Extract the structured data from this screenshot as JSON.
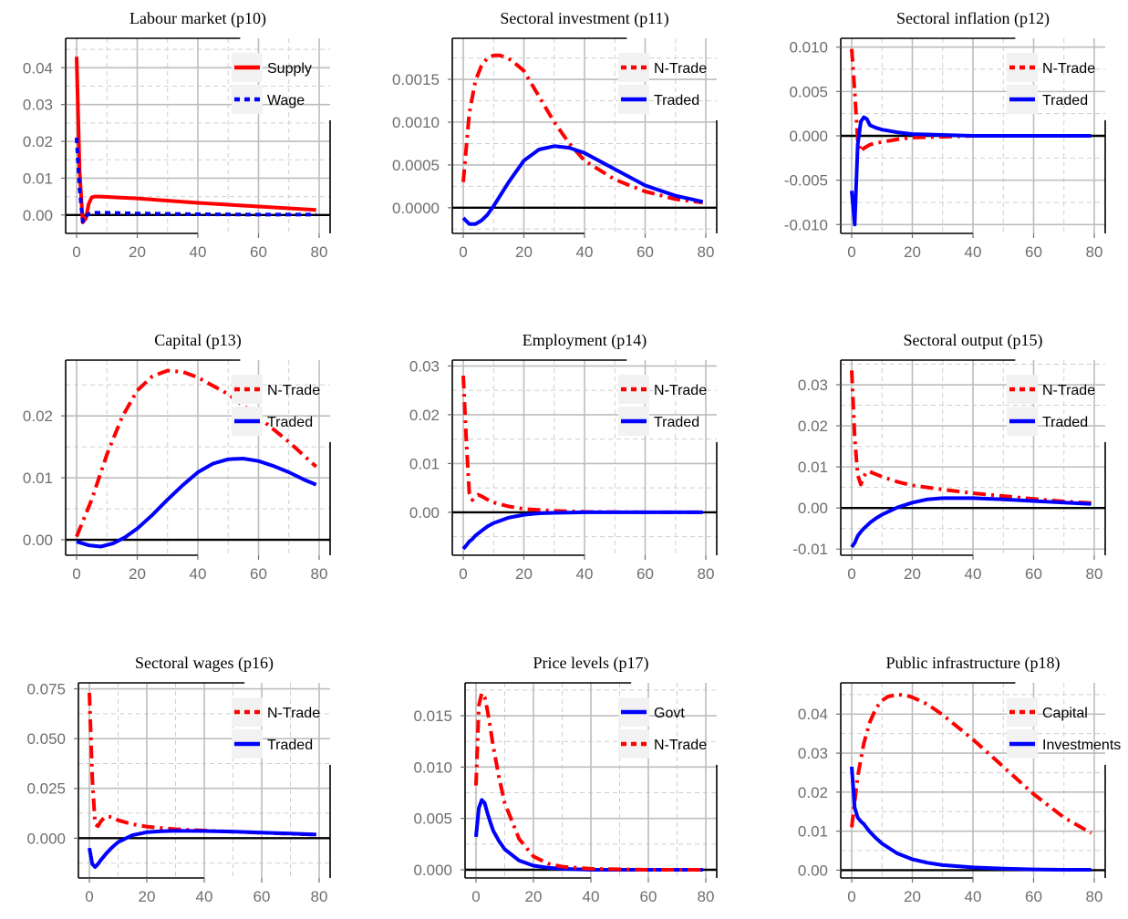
{
  "chart_data": [
    {
      "type": "line",
      "title": "Labour market (p10)",
      "xlim": [
        0,
        80
      ],
      "ylim": [
        -0.005,
        0.048
      ],
      "xticks": [
        0,
        20,
        40,
        60,
        80
      ],
      "xtick_labels": [
        "0",
        "20",
        "40",
        "60",
        "80"
      ],
      "yticks": [
        0,
        0.01,
        0.02,
        0.03,
        0.04
      ],
      "ytick_labels": [
        "0.00",
        "0.01",
        "0.02",
        "0.03",
        "0.04"
      ],
      "grid": true,
      "legend": "top-right",
      "series": [
        {
          "name": "Supply",
          "color": "#ff0000",
          "style": "solid",
          "x": [
            0,
            1,
            2,
            3,
            4,
            5,
            6,
            8,
            10,
            20,
            30,
            40,
            50,
            60,
            70,
            79
          ],
          "y": [
            0.043,
            0.012,
            -0.002,
            -0.001,
            0.003,
            0.0048,
            0.005,
            0.005,
            0.0049,
            0.0045,
            0.0039,
            0.0033,
            0.0028,
            0.0023,
            0.0018,
            0.0014
          ]
        },
        {
          "name": "Wage",
          "color": "#0000ff",
          "style": "dashed",
          "x": [
            0,
            1,
            2,
            3,
            4,
            6,
            10,
            20,
            40,
            60,
            79
          ],
          "y": [
            0.021,
            0.007,
            -0.0018,
            -0.0005,
            0.0003,
            0.0006,
            0.0006,
            0.0004,
            0.0002,
            0.0001,
            0.0001
          ]
        }
      ]
    },
    {
      "type": "line",
      "title": "Sectoral investment (p11)",
      "xlim": [
        0,
        80
      ],
      "ylim": [
        -0.0003,
        0.00198
      ],
      "xticks": [
        0,
        20,
        40,
        60,
        80
      ],
      "xtick_labels": [
        "0",
        "20",
        "40",
        "60",
        "80"
      ],
      "yticks": [
        0,
        0.0005,
        0.001,
        0.0015
      ],
      "ytick_labels": [
        "0.0000",
        "0.0005",
        "0.0010",
        "0.0015"
      ],
      "grid": true,
      "legend": "top-right",
      "series": [
        {
          "name": "N-Trade",
          "color": "#ff0000",
          "style": "dashdot",
          "x": [
            0,
            2,
            4,
            6,
            8,
            10,
            12,
            14,
            16,
            20,
            25,
            30,
            35,
            40,
            50,
            60,
            70,
            79
          ],
          "y": [
            0.0003,
            0.0011,
            0.00148,
            0.00166,
            0.00175,
            0.00178,
            0.00178,
            0.00176,
            0.00172,
            0.0016,
            0.0013,
            0.001,
            0.00075,
            0.00055,
            0.00033,
            0.00019,
            0.0001,
            6e-05
          ]
        },
        {
          "name": "Traded",
          "color": "#0000ff",
          "style": "solid",
          "x": [
            0,
            2,
            4,
            6,
            8,
            10,
            15,
            20,
            25,
            30,
            35,
            40,
            50,
            60,
            70,
            79
          ],
          "y": [
            -0.00012,
            -0.00019,
            -0.00019,
            -0.00015,
            -8e-05,
            2e-05,
            0.0003,
            0.00055,
            0.00068,
            0.00072,
            0.0007,
            0.00064,
            0.00045,
            0.00026,
            0.00014,
            7e-05
          ]
        }
      ]
    },
    {
      "type": "line",
      "title": "Sectoral inflation (p12)",
      "xlim": [
        0,
        80
      ],
      "ylim": [
        -0.011,
        0.011
      ],
      "xticks": [
        0,
        20,
        40,
        60,
        80
      ],
      "xtick_labels": [
        "0",
        "20",
        "40",
        "60",
        "80"
      ],
      "yticks": [
        -0.01,
        -0.005,
        0,
        0.005,
        0.01
      ],
      "ytick_labels": [
        "-0.010",
        "-0.005",
        "0.000",
        "0.005",
        "0.010"
      ],
      "grid": true,
      "legend": "top-right",
      "series": [
        {
          "name": "N-Trade",
          "color": "#ff0000",
          "style": "dashdot",
          "x": [
            0,
            1,
            2,
            3,
            4,
            6,
            8,
            10,
            15,
            20,
            30,
            40,
            60,
            79
          ],
          "y": [
            0.0098,
            0.005,
            -0.0005,
            -0.0018,
            -0.0014,
            -0.001,
            -0.0008,
            -0.0007,
            -0.0004,
            -0.0002,
            -0.0001,
            0,
            0,
            0
          ]
        },
        {
          "name": "Traded",
          "color": "#0000ff",
          "style": "solid",
          "x": [
            0,
            1,
            2,
            3,
            4,
            5,
            6,
            8,
            10,
            15,
            20,
            30,
            40,
            60,
            79
          ],
          "y": [
            -0.0062,
            -0.01,
            -0.001,
            0.0016,
            0.0021,
            0.0019,
            0.0012,
            0.0009,
            0.0007,
            0.0004,
            0.0002,
            0.0001,
            0,
            0,
            0
          ]
        }
      ]
    },
    {
      "type": "line",
      "title": "Capital (p13)",
      "xlim": [
        0,
        80
      ],
      "ylim": [
        -0.0025,
        0.029
      ],
      "xticks": [
        0,
        20,
        40,
        60,
        80
      ],
      "xtick_labels": [
        "0",
        "20",
        "40",
        "60",
        "80"
      ],
      "yticks": [
        0,
        0.01,
        0.02
      ],
      "ytick_labels": [
        "0.00",
        "0.01",
        "0.02"
      ],
      "grid": true,
      "legend": "top-right",
      "series": [
        {
          "name": "N-Trade",
          "color": "#ff0000",
          "style": "dashdot",
          "x": [
            0,
            5,
            10,
            15,
            20,
            25,
            30,
            35,
            40,
            50,
            60,
            70,
            79
          ],
          "y": [
            0.0005,
            0.0065,
            0.0138,
            0.0198,
            0.0241,
            0.0264,
            0.0273,
            0.0271,
            0.0262,
            0.0235,
            0.0198,
            0.0158,
            0.0118
          ]
        },
        {
          "name": "Traded",
          "color": "#0000ff",
          "style": "solid",
          "x": [
            0,
            4,
            8,
            12,
            16,
            20,
            25,
            30,
            35,
            40,
            45,
            50,
            55,
            60,
            65,
            70,
            75,
            79
          ],
          "y": [
            -0.0003,
            -0.0009,
            -0.0011,
            -0.0006,
            0.0004,
            0.0018,
            0.004,
            0.0065,
            0.0088,
            0.0109,
            0.0123,
            0.013,
            0.0131,
            0.0127,
            0.0119,
            0.0109,
            0.0097,
            0.0089
          ]
        }
      ]
    },
    {
      "type": "line",
      "title": "Employment (p14)",
      "xlim": [
        0,
        80
      ],
      "ylim": [
        -0.0088,
        0.0312
      ],
      "xticks": [
        0,
        20,
        40,
        60,
        80
      ],
      "xtick_labels": [
        "0",
        "20",
        "40",
        "60",
        "80"
      ],
      "yticks": [
        0,
        0.01,
        0.02,
        0.03
      ],
      "ytick_labels": [
        "0.00",
        "0.01",
        "0.02",
        "0.03"
      ],
      "grid": true,
      "legend": "top-right",
      "series": [
        {
          "name": "N-Trade",
          "color": "#ff0000",
          "style": "dashdot",
          "x": [
            0,
            1,
            2,
            3,
            4,
            5,
            6,
            8,
            10,
            15,
            20,
            30,
            40,
            60,
            79
          ],
          "y": [
            0.028,
            0.015,
            0.004,
            0.0025,
            0.0032,
            0.0036,
            0.0033,
            0.0026,
            0.002,
            0.0012,
            0.0007,
            0.0003,
            0.0001,
            0,
            0
          ]
        },
        {
          "name": "Traded",
          "color": "#0000ff",
          "style": "solid",
          "x": [
            0,
            1,
            2,
            3,
            4,
            6,
            8,
            10,
            15,
            20,
            25,
            30,
            40,
            60,
            79
          ],
          "y": [
            -0.0075,
            -0.0068,
            -0.006,
            -0.0055,
            -0.0048,
            -0.0038,
            -0.0029,
            -0.0022,
            -0.0011,
            -0.0005,
            -0.0002,
            -0.0001,
            0,
            0,
            0
          ]
        }
      ]
    },
    {
      "type": "line",
      "title": "Sectoral output (p15)",
      "xlim": [
        0,
        80
      ],
      "ylim": [
        -0.0115,
        0.036
      ],
      "xticks": [
        0,
        20,
        40,
        60,
        80
      ],
      "xtick_labels": [
        "0",
        "20",
        "40",
        "60",
        "80"
      ],
      "yticks": [
        -0.01,
        0,
        0.01,
        0.02,
        0.03
      ],
      "ytick_labels": [
        "-0.01",
        "0.00",
        "0.01",
        "0.02",
        "0.03"
      ],
      "grid": true,
      "legend": "top-right",
      "series": [
        {
          "name": "N-Trade",
          "color": "#ff0000",
          "style": "dashdot",
          "x": [
            0,
            1,
            2,
            3,
            4,
            5,
            6,
            8,
            10,
            15,
            20,
            30,
            40,
            50,
            60,
            70,
            79
          ],
          "y": [
            0.0335,
            0.017,
            0.008,
            0.0057,
            0.0077,
            0.0088,
            0.0088,
            0.0082,
            0.0076,
            0.0064,
            0.0055,
            0.0045,
            0.0036,
            0.0029,
            0.0022,
            0.0016,
            0.0012
          ]
        },
        {
          "name": "Traded",
          "color": "#0000ff",
          "style": "solid",
          "x": [
            0,
            1,
            2,
            3,
            4,
            6,
            8,
            10,
            15,
            20,
            25,
            30,
            40,
            50,
            60,
            70,
            79
          ],
          "y": [
            -0.0095,
            -0.0085,
            -0.0068,
            -0.0058,
            -0.005,
            -0.0036,
            -0.0025,
            -0.0016,
            0.0001,
            0.0013,
            0.0021,
            0.0024,
            0.0024,
            0.0021,
            0.0017,
            0.0013,
            0.001
          ]
        }
      ]
    },
    {
      "type": "line",
      "title": "Sectoral wages (p16)",
      "xlim": [
        0,
        80
      ],
      "ylim": [
        -0.02,
        0.078
      ],
      "xticks": [
        0,
        20,
        40,
        60,
        80
      ],
      "xtick_labels": [
        "0",
        "20",
        "40",
        "60",
        "80"
      ],
      "yticks": [
        0,
        0.025,
        0.05,
        0.075
      ],
      "ytick_labels": [
        "0.000",
        "0.025",
        "0.050",
        "0.075"
      ],
      "grid": true,
      "legend": "top-right",
      "series": [
        {
          "name": "N-Trade",
          "color": "#ff0000",
          "style": "dashdot",
          "x": [
            0,
            1,
            2,
            3,
            4,
            5,
            6,
            8,
            10,
            15,
            20,
            30,
            40,
            50,
            60,
            70,
            79
          ],
          "y": [
            0.073,
            0.03,
            0.007,
            0.006,
            0.0085,
            0.01,
            0.011,
            0.0105,
            0.009,
            0.007,
            0.0058,
            0.0045,
            0.0038,
            0.0032,
            0.0027,
            0.0022,
            0.0018
          ]
        },
        {
          "name": "Traded",
          "color": "#0000ff",
          "style": "solid",
          "x": [
            0,
            1,
            2,
            3,
            4,
            6,
            8,
            10,
            15,
            20,
            25,
            30,
            40,
            50,
            60,
            70,
            79
          ],
          "y": [
            -0.005,
            -0.013,
            -0.0145,
            -0.013,
            -0.011,
            -0.0075,
            -0.0045,
            -0.002,
            0.0015,
            0.003,
            0.0035,
            0.0037,
            0.0036,
            0.0033,
            0.0028,
            0.0023,
            0.0018
          ]
        }
      ]
    },
    {
      "type": "line",
      "title": "Price levels (p17)",
      "xlim": [
        0,
        80
      ],
      "ylim": [
        -0.0008,
        0.0182
      ],
      "xticks": [
        0,
        20,
        40,
        60,
        80
      ],
      "xtick_labels": [
        "0",
        "20",
        "40",
        "60",
        "80"
      ],
      "yticks": [
        0,
        0.005,
        0.01,
        0.015
      ],
      "ytick_labels": [
        "0.000",
        "0.005",
        "0.010",
        "0.015"
      ],
      "grid": true,
      "legend": "top-right",
      "series": [
        {
          "name": "Govt",
          "color": "#0000ff",
          "style": "solid",
          "x": [
            0,
            1,
            2,
            3,
            4,
            5,
            6,
            8,
            10,
            15,
            20,
            25,
            30,
            40,
            60,
            79
          ],
          "y": [
            0.0032,
            0.006,
            0.0068,
            0.0065,
            0.0055,
            0.0046,
            0.0038,
            0.0028,
            0.002,
            0.0009,
            0.0004,
            0.0002,
            0.0001,
            0,
            0,
            0
          ]
        },
        {
          "name": "N-Trade",
          "color": "#ff0000",
          "style": "dashdot",
          "x": [
            0,
            1,
            2,
            3,
            4,
            5,
            6,
            8,
            10,
            15,
            20,
            25,
            30,
            40,
            60,
            79
          ],
          "y": [
            0.0082,
            0.016,
            0.0172,
            0.0168,
            0.0155,
            0.0138,
            0.012,
            0.009,
            0.0065,
            0.003,
            0.0013,
            0.0006,
            0.0003,
            0.0001,
            0,
            0
          ]
        }
      ]
    },
    {
      "type": "line",
      "title": "Public infrastructure (p18)",
      "xlim": [
        0,
        80
      ],
      "ylim": [
        -0.002,
        0.048
      ],
      "xticks": [
        0,
        20,
        40,
        60,
        80
      ],
      "xtick_labels": [
        "0",
        "20",
        "40",
        "60",
        "80"
      ],
      "yticks": [
        0,
        0.01,
        0.02,
        0.03,
        0.04
      ],
      "ytick_labels": [
        "0.00",
        "0.01",
        "0.02",
        "0.03",
        "0.04"
      ],
      "grid": true,
      "legend": "top-right",
      "series": [
        {
          "name": "Capital",
          "color": "#ff0000",
          "style": "dashdot",
          "x": [
            0,
            2,
            4,
            6,
            8,
            10,
            12,
            15,
            18,
            20,
            25,
            30,
            40,
            50,
            60,
            70,
            79
          ],
          "y": [
            0.011,
            0.024,
            0.0325,
            0.038,
            0.0415,
            0.0435,
            0.0445,
            0.045,
            0.0448,
            0.0443,
            0.0425,
            0.0398,
            0.0335,
            0.0265,
            0.0195,
            0.0135,
            0.0095
          ]
        },
        {
          "name": "Investments",
          "color": "#0000ff",
          "style": "solid",
          "x": [
            0,
            1,
            2,
            3,
            4,
            5,
            6,
            8,
            10,
            15,
            20,
            25,
            30,
            40,
            50,
            60,
            70,
            79
          ],
          "y": [
            0.0265,
            0.016,
            0.0135,
            0.0125,
            0.0118,
            0.0108,
            0.0098,
            0.0082,
            0.0068,
            0.0043,
            0.0028,
            0.0019,
            0.0013,
            0.0007,
            0.0004,
            0.0002,
            0.0001,
            0.0001
          ]
        }
      ]
    }
  ]
}
